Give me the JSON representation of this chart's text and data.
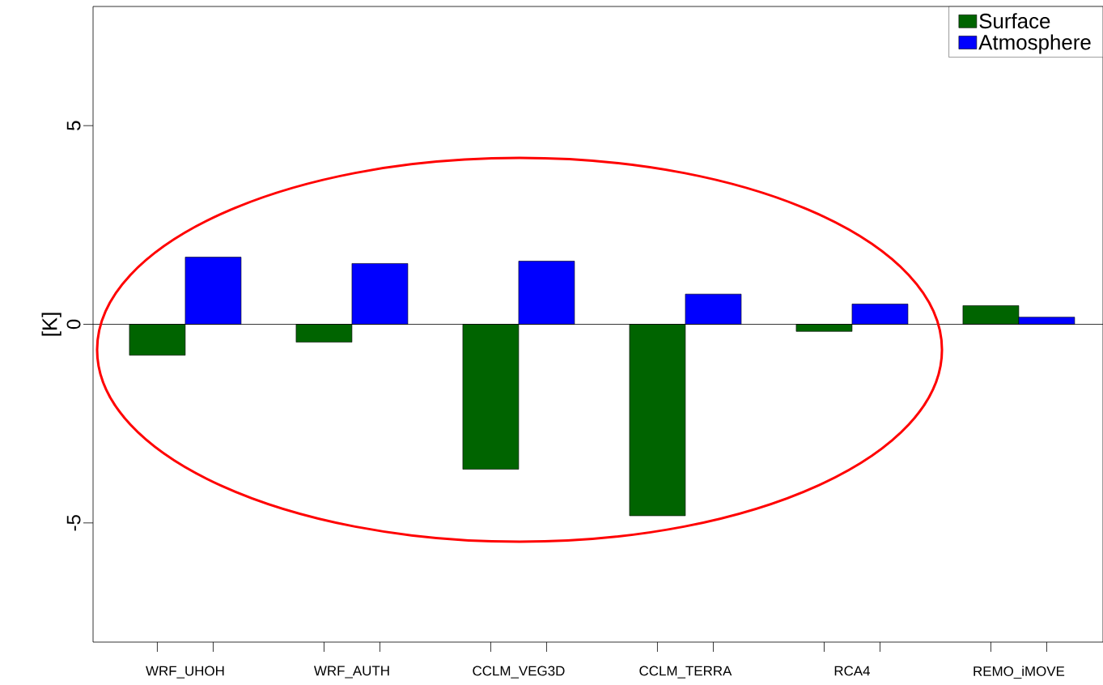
{
  "chart_data": {
    "type": "bar",
    "ylabel": "[K]",
    "categories": [
      "WRF_UHOH",
      "WRF_AUTH",
      "CCLM_VEG3D",
      "CCLM_TERRA",
      "RCA4",
      "REMO_iMOVE"
    ],
    "series": [
      {
        "name": "Surface",
        "color": "#006400",
        "values": [
          -0.78,
          -0.45,
          -3.65,
          -4.82,
          -0.18,
          0.47
        ]
      },
      {
        "name": "Atmosphere",
        "color": "#0000ff",
        "values": [
          1.69,
          1.53,
          1.59,
          0.76,
          0.51,
          0.18
        ]
      }
    ],
    "ylim": [
      -8,
      8
    ],
    "yticks": [
      -5,
      0,
      5
    ],
    "ref_lines": [
      {
        "axis": "y",
        "value": 0
      }
    ],
    "legend": "top right",
    "grid": false
  }
}
